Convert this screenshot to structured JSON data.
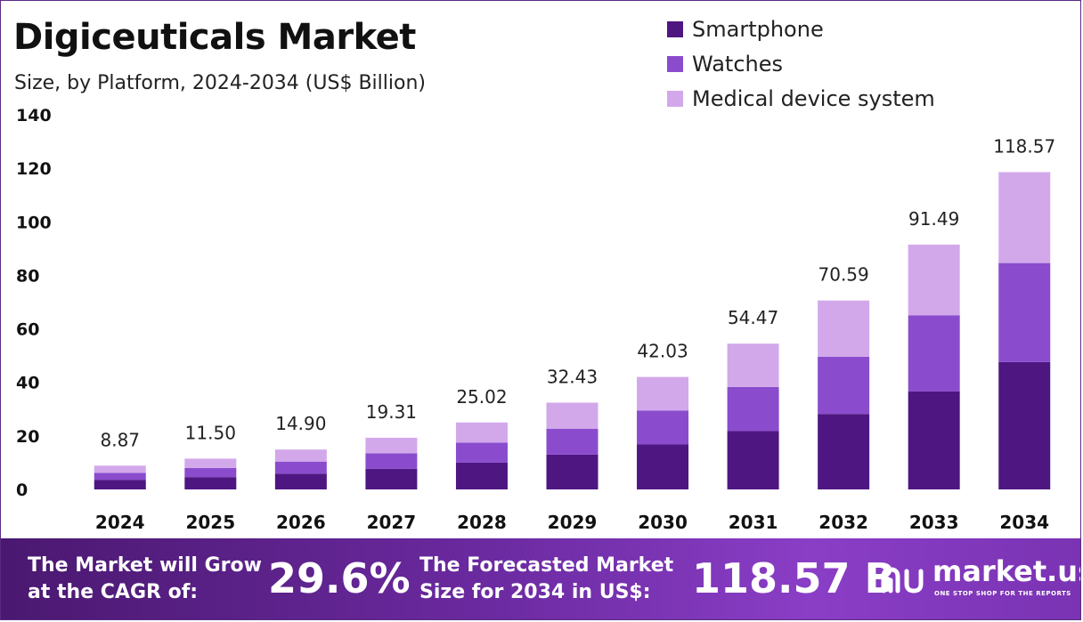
{
  "title": "Digiceuticals Market",
  "subtitle": "Size, by Platform, 2024-2034 (US$ Billion)",
  "colors": {
    "Smartphone": "#4e1681",
    "Watches": "#8a4ccd",
    "Medical device system": "#d2a8eb",
    "footer_start": "#4a1870",
    "footer_end": "#8a3ec6"
  },
  "chart_data": {
    "type": "bar",
    "stacked": true,
    "categories": [
      "2024",
      "2025",
      "2026",
      "2027",
      "2028",
      "2029",
      "2030",
      "2031",
      "2032",
      "2033",
      "2034"
    ],
    "series": [
      {
        "name": "Smartphone",
        "values": [
          3.6,
          4.6,
          5.9,
          7.7,
          10.0,
          13.0,
          16.8,
          21.8,
          28.2,
          36.6,
          47.6
        ]
      },
      {
        "name": "Watches",
        "values": [
          2.6,
          3.4,
          4.5,
          5.8,
          7.5,
          9.7,
          12.7,
          16.5,
          21.4,
          28.5,
          37.0
        ]
      },
      {
        "name": "Medical device system",
        "values": [
          2.67,
          3.5,
          4.5,
          5.81,
          7.52,
          9.73,
          12.53,
          16.17,
          20.99,
          26.39,
          33.97
        ]
      }
    ],
    "totals": [
      "8.87",
      "11.50",
      "14.90",
      "19.31",
      "25.02",
      "32.43",
      "42.03",
      "54.47",
      "70.59",
      "91.49",
      "118.57"
    ],
    "ylim": [
      0,
      140
    ],
    "yticks": [
      0,
      20,
      40,
      60,
      80,
      100,
      120,
      140
    ],
    "grid": false,
    "legend": "top-right",
    "xlabel": "",
    "ylabel": ""
  },
  "footer": {
    "cagr_text_line1": "The Market will Grow",
    "cagr_text_line2": "at the CAGR of:",
    "cagr_value": "29.6%",
    "forecast_text_line1": "The Forecasted Market",
    "forecast_text_line2": "Size for 2034 in US$:",
    "forecast_value": "118.57 B",
    "brand_name": "market.us",
    "brand_tagline": "ONE STOP SHOP FOR THE REPORTS",
    "brand_icon": "market-us-logo-icon"
  }
}
